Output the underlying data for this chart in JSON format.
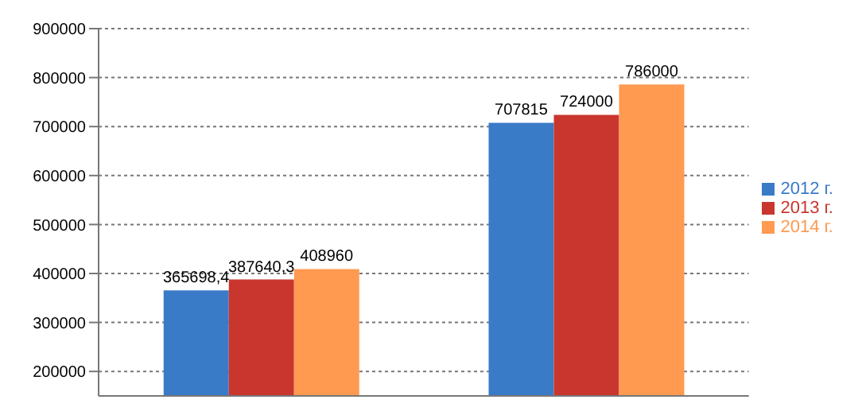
{
  "chart_data": {
    "type": "bar",
    "categories": [
      null,
      null
    ],
    "series": [
      {
        "name": "2012 г.",
        "color": "#3a7bc8",
        "values": [
          365698.4,
          707815
        ],
        "value_labels": [
          "365698,4",
          "707815"
        ]
      },
      {
        "name": "2013 г.",
        "color": "#c9362e",
        "values": [
          387640.3,
          724000
        ],
        "value_labels": [
          "387640,3",
          "724000"
        ]
      },
      {
        "name": "2014 г.",
        "color": "#ff9a50",
        "values": [
          408960,
          786000
        ],
        "value_labels": [
          "408960",
          "786000"
        ]
      }
    ],
    "ylim": [
      150000,
      900000
    ],
    "yticks": [
      200000,
      300000,
      400000,
      500000,
      600000,
      700000,
      800000,
      900000
    ],
    "grid": "y",
    "legend": "right"
  }
}
